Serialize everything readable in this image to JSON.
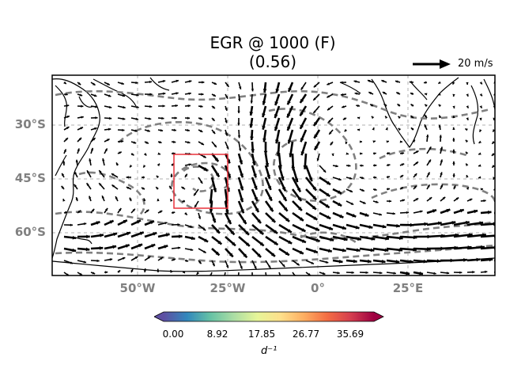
{
  "title_line1": "EGR @ 1000 (F)",
  "title_line2": "(0.56)",
  "reference_vector": {
    "label": "20 m/s"
  },
  "lat_labels": [
    "30°S",
    "45°S",
    "60°S"
  ],
  "lon_labels": [
    "50°W",
    "25°W",
    "0°",
    "25°E"
  ],
  "colorbar": {
    "ticks": [
      "0.00",
      "8.92",
      "17.85",
      "26.77",
      "35.69"
    ],
    "label": "d⁻¹",
    "colors": [
      "#5e4fa2",
      "#3288bd",
      "#66c2a5",
      "#abdda4",
      "#e6f598",
      "#fee08b",
      "#fdae61",
      "#f46d43",
      "#d53e4f",
      "#9e0142"
    ]
  },
  "colors": {
    "contour": "#808080",
    "box": "#e8313a",
    "arrow": "#000000",
    "grid": "#b0b0b0"
  }
}
